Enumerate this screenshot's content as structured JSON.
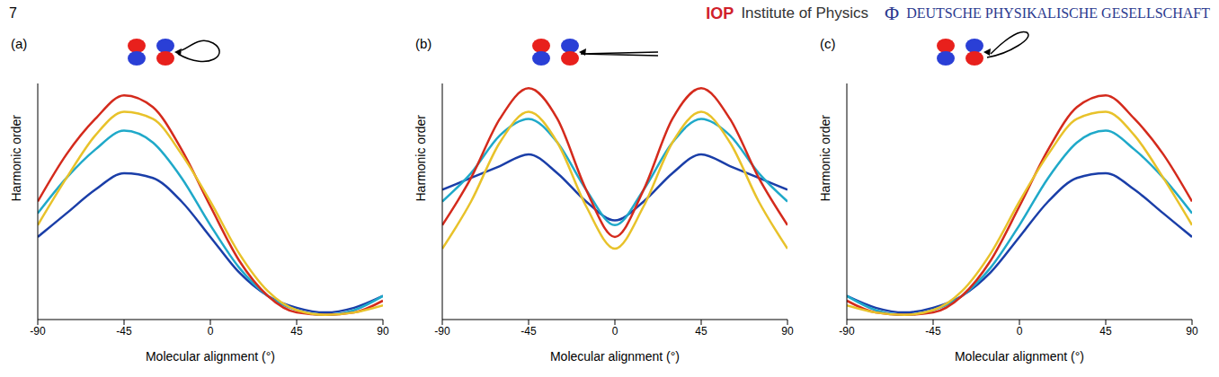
{
  "page_header": {
    "page_number": "7",
    "left_mark": "IOP",
    "left_text": "Institute of Physics",
    "right_mark": "Φ",
    "right_text": "DEUTSCHE PHYSIKALISCHE GESELLSCHAFT"
  },
  "chart_data": [
    {
      "type": "line",
      "title": "(a)",
      "xlabel": "Molecular alignment (°)",
      "ylabel": "Harmonic order",
      "tick_labels": "x",
      "x": [
        -90,
        -75,
        -60,
        -45,
        -30,
        -15,
        0,
        15,
        30,
        45,
        60,
        75,
        90
      ],
      "xlim": [
        -90,
        90
      ],
      "xticks": [
        -90,
        -45,
        0,
        45,
        90
      ],
      "ylim": [
        0,
        1
      ],
      "series": [
        {
          "color": "#1a3ea8",
          "values": [
            0.35,
            0.45,
            0.55,
            0.62,
            0.6,
            0.5,
            0.35,
            0.2,
            0.1,
            0.05,
            0.03,
            0.05,
            0.1
          ]
        },
        {
          "color": "#1fa9c9",
          "values": [
            0.45,
            0.6,
            0.72,
            0.8,
            0.75,
            0.6,
            0.4,
            0.22,
            0.1,
            0.04,
            0.02,
            0.04,
            0.1
          ]
        },
        {
          "color": "#d42a1c",
          "values": [
            0.5,
            0.7,
            0.85,
            0.95,
            0.9,
            0.72,
            0.48,
            0.25,
            0.1,
            0.03,
            0.02,
            0.03,
            0.08
          ]
        },
        {
          "color": "#e8c22a",
          "values": [
            0.4,
            0.6,
            0.78,
            0.88,
            0.85,
            0.7,
            0.5,
            0.28,
            0.12,
            0.04,
            0.02,
            0.03,
            0.06
          ]
        }
      ]
    },
    {
      "type": "line",
      "title": "(b)",
      "xlabel": "Molecular alignment (°)",
      "ylabel": "Harmonic order",
      "tick_labels": "x",
      "x": [
        -90,
        -75,
        -60,
        -45,
        -30,
        -15,
        0,
        15,
        30,
        45,
        60,
        75,
        90
      ],
      "xlim": [
        -90,
        90
      ],
      "xticks": [
        -90,
        -45,
        0,
        45,
        90
      ],
      "ylim": [
        0,
        1
      ],
      "series": [
        {
          "color": "#1a3ea8",
          "values": [
            0.55,
            0.6,
            0.65,
            0.7,
            0.62,
            0.5,
            0.42,
            0.5,
            0.62,
            0.7,
            0.65,
            0.6,
            0.55
          ]
        },
        {
          "color": "#1fa9c9",
          "values": [
            0.5,
            0.62,
            0.78,
            0.85,
            0.75,
            0.55,
            0.4,
            0.55,
            0.75,
            0.85,
            0.78,
            0.62,
            0.5
          ]
        },
        {
          "color": "#d42a1c",
          "values": [
            0.4,
            0.6,
            0.85,
            0.98,
            0.85,
            0.55,
            0.35,
            0.55,
            0.85,
            0.98,
            0.85,
            0.6,
            0.4
          ]
        },
        {
          "color": "#e8c22a",
          "values": [
            0.3,
            0.5,
            0.75,
            0.88,
            0.75,
            0.48,
            0.3,
            0.48,
            0.75,
            0.88,
            0.75,
            0.5,
            0.3
          ]
        }
      ]
    },
    {
      "type": "line",
      "title": "(c)",
      "xlabel": "Molecular alignment (°)",
      "ylabel": "Harmonic order",
      "tick_labels": "x",
      "x": [
        -90,
        -75,
        -60,
        -45,
        -30,
        -15,
        0,
        15,
        30,
        45,
        60,
        75,
        90
      ],
      "xlim": [
        -90,
        90
      ],
      "xticks": [
        -90,
        -45,
        0,
        45,
        90
      ],
      "ylim": [
        0,
        1
      ],
      "series": [
        {
          "color": "#1a3ea8",
          "values": [
            0.1,
            0.05,
            0.03,
            0.05,
            0.1,
            0.2,
            0.35,
            0.5,
            0.6,
            0.62,
            0.55,
            0.45,
            0.35
          ]
        },
        {
          "color": "#1fa9c9",
          "values": [
            0.1,
            0.04,
            0.02,
            0.04,
            0.1,
            0.22,
            0.4,
            0.6,
            0.75,
            0.8,
            0.72,
            0.6,
            0.45
          ]
        },
        {
          "color": "#d42a1c",
          "values": [
            0.08,
            0.03,
            0.02,
            0.03,
            0.1,
            0.25,
            0.48,
            0.72,
            0.9,
            0.95,
            0.85,
            0.7,
            0.5
          ]
        },
        {
          "color": "#e8c22a",
          "values": [
            0.06,
            0.03,
            0.02,
            0.04,
            0.12,
            0.28,
            0.5,
            0.7,
            0.85,
            0.88,
            0.78,
            0.6,
            0.4
          ]
        }
      ]
    }
  ]
}
